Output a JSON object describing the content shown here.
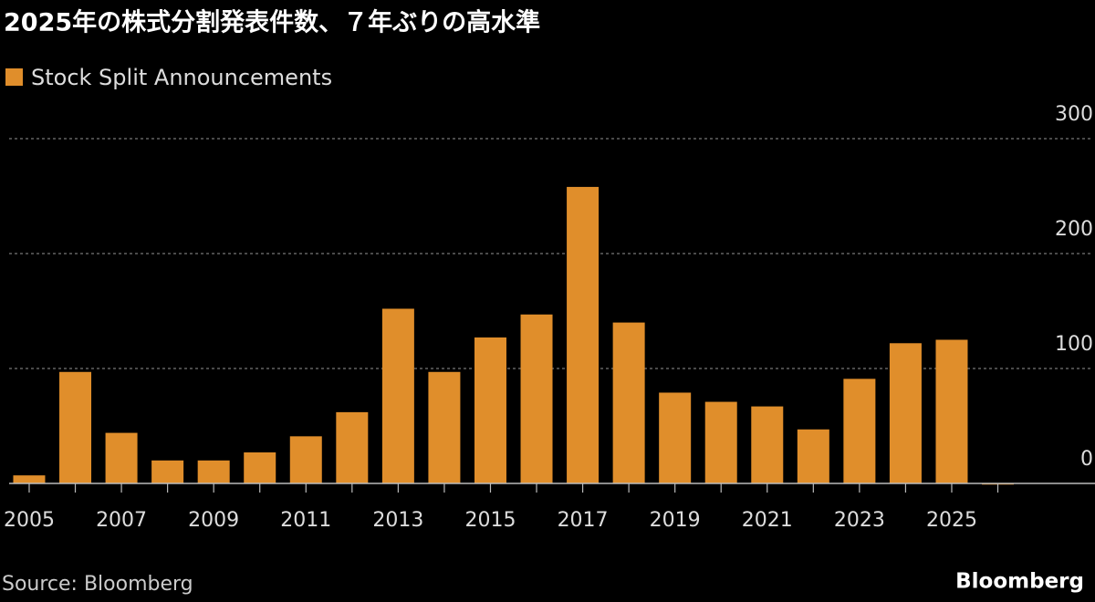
{
  "chart_data": {
    "type": "bar",
    "title": "2025年の株式分割発表件数、７年ぶりの高水準",
    "categories": [
      "2005",
      null,
      "2007",
      null,
      "2009",
      null,
      "2011",
      null,
      "2013",
      null,
      "2015",
      null,
      "2017",
      null,
      "2019",
      null,
      "2021",
      null,
      "2023",
      null,
      "2025",
      null
    ],
    "series": [
      {
        "name": "Stock Split Announcements",
        "color": "#e08e2b",
        "values": [
          7,
          97,
          44,
          20,
          20,
          27,
          41,
          62,
          152,
          97,
          127,
          147,
          258,
          140,
          79,
          71,
          67,
          47,
          91,
          122,
          125,
          -1
        ]
      }
    ],
    "ylim": [
      0,
      300
    ],
    "yticks": [
      0,
      100,
      200,
      300
    ],
    "grid": true,
    "source": "Source: Bloomberg",
    "brand": "Bloomberg"
  }
}
